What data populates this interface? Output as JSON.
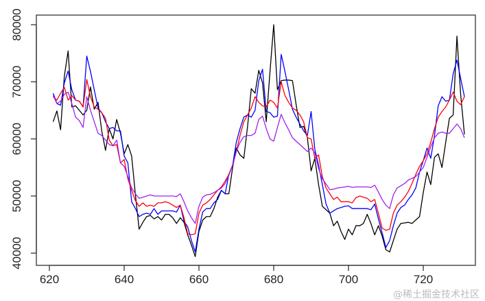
{
  "chart_data": {
    "type": "line",
    "title": "",
    "xlabel": "",
    "ylabel": "",
    "xlim": [
      620,
      732
    ],
    "ylim": [
      40000,
      80000
    ],
    "grid": false,
    "x_ticks": [
      "620",
      "640",
      "660",
      "680",
      "700",
      "720"
    ],
    "y_ticks": [
      "40000",
      "50000",
      "60000",
      "70000",
      "80000"
    ],
    "x_start": 621,
    "series": [
      {
        "name": "black",
        "color": "#000000",
        "values": [
          63000,
          64900,
          61600,
          71000,
          75400,
          65600,
          65800,
          65000,
          64200,
          65000,
          69100,
          65200,
          66400,
          61400,
          58000,
          61800,
          60000,
          63400,
          61000,
          57400,
          59000,
          57000,
          50200,
          44200,
          45400,
          46400,
          46600,
          46000,
          46400,
          45800,
          46800,
          46800,
          46200,
          45200,
          46200,
          45400,
          43200,
          41400,
          39400,
          43800,
          45800,
          46400,
          46400,
          47800,
          49800,
          51000,
          50400,
          50400,
          55000,
          58400,
          57200,
          56600,
          62200,
          68800,
          68000,
          72000,
          69800,
          63000,
          71800,
          80000,
          68600,
          70200,
          70300,
          70300,
          70200,
          66000,
          62000,
          62200,
          60200,
          54400,
          56600,
          52000,
          48200,
          47600,
          47000,
          44800,
          45600,
          43800,
          42400,
          44200,
          43200,
          44800,
          44800,
          45200,
          46800,
          45200,
          43200,
          44800,
          43000,
          40600,
          40200,
          42200,
          44200,
          45200,
          45300,
          45400,
          45200,
          45800,
          46400,
          50600,
          54200,
          52000,
          56800,
          57400,
          55000,
          59400,
          63600,
          64200,
          78000,
          67800,
          60800
        ]
      },
      {
        "name": "blue",
        "color": "#0000ff",
        "values": [
          68000,
          66200,
          65900,
          69800,
          71900,
          68600,
          66800,
          66600,
          65600,
          74500,
          71800,
          68600,
          65400,
          64600,
          63000,
          61800,
          62000,
          61400,
          61400,
          57000,
          55800,
          49000,
          47800,
          46400,
          46800,
          47000,
          46800,
          47800,
          46800,
          47400,
          47400,
          47400,
          47400,
          47200,
          48400,
          45600,
          44600,
          42200,
          40200,
          44200,
          47200,
          47800,
          47800,
          48800,
          49400,
          51000,
          50400,
          53800,
          55400,
          59400,
          61800,
          63800,
          64200,
          63800,
          65000,
          70200,
          72200,
          64800,
          64600,
          63800,
          64000,
          74800,
          71800,
          68600,
          65200,
          63800,
          62600,
          61400,
          60600,
          64800,
          58200,
          55400,
          52000,
          48600,
          47000,
          47400,
          47800,
          48000,
          48200,
          48300,
          47800,
          47800,
          47800,
          47800,
          47800,
          47600,
          48600,
          46000,
          43600,
          41000,
          42200,
          44800,
          47000,
          48000,
          48400,
          49400,
          50200,
          51400,
          54200,
          56200,
          58400,
          56600,
          60600,
          65800,
          67400,
          66600,
          66800,
          71400,
          73800,
          70600,
          67400
        ]
      },
      {
        "name": "red",
        "color": "#ff0000",
        "values": [
          67400,
          66800,
          68000,
          69000,
          66800,
          67600,
          66800,
          66600,
          65600,
          70400,
          67400,
          65600,
          65200,
          64600,
          63600,
          59800,
          58800,
          59000,
          55800,
          56400,
          53000,
          51000,
          49200,
          48200,
          48800,
          48200,
          48400,
          48200,
          48800,
          48800,
          49000,
          48800,
          48400,
          48000,
          48400,
          46200,
          43400,
          43200,
          43400,
          47000,
          48400,
          48800,
          49400,
          50200,
          51000,
          51600,
          52600,
          53800,
          55400,
          57800,
          60600,
          63000,
          64200,
          65400,
          67400,
          66400,
          65800,
          65600,
          66800,
          66400,
          65400,
          70000,
          67600,
          66400,
          65400,
          65000,
          64200,
          63000,
          60200,
          60000,
          56600,
          57200,
          53400,
          51400,
          50400,
          49400,
          49800,
          49000,
          49000,
          49000,
          48800,
          49700,
          50000,
          49800,
          49600,
          49000,
          49400,
          47000,
          44400,
          44000,
          44200,
          47000,
          48400,
          49000,
          49800,
          50800,
          52200,
          53800,
          55200,
          56200,
          57400,
          59400,
          61800,
          63800,
          64800,
          65600,
          66800,
          68200,
          66600,
          66000,
          67400
        ]
      },
      {
        "name": "purple",
        "color": "#a020f0",
        "values": [
          67600,
          66200,
          66600,
          67800,
          68200,
          66200,
          63800,
          63200,
          62000,
          67400,
          65000,
          63000,
          61000,
          60600,
          59800,
          59000,
          58800,
          59800,
          55800,
          55200,
          53400,
          51400,
          50400,
          49600,
          49800,
          50000,
          50200,
          50000,
          50000,
          50000,
          50000,
          50000,
          50000,
          49900,
          50400,
          49000,
          47400,
          46200,
          45200,
          48200,
          49800,
          50200,
          50300,
          50600,
          51000,
          51400,
          52200,
          53600,
          55400,
          57800,
          59400,
          60400,
          60600,
          60600,
          61000,
          63400,
          64000,
          61800,
          60000,
          59600,
          62000,
          64300,
          62800,
          61600,
          60200,
          59600,
          59000,
          58400,
          57800,
          58400,
          57600,
          54800,
          53000,
          52100,
          51100,
          51200,
          51400,
          51500,
          51600,
          51700,
          51500,
          51600,
          51600,
          51600,
          51600,
          51500,
          51900,
          50700,
          49400,
          48400,
          47800,
          50200,
          51400,
          51800,
          52200,
          52800,
          53100,
          53400,
          54200,
          55000,
          56800,
          58600,
          60200,
          61000,
          61200,
          61000,
          61000,
          61800,
          62600,
          61800,
          60200
        ]
      }
    ]
  },
  "watermark": "@稀土掘金技术社区"
}
